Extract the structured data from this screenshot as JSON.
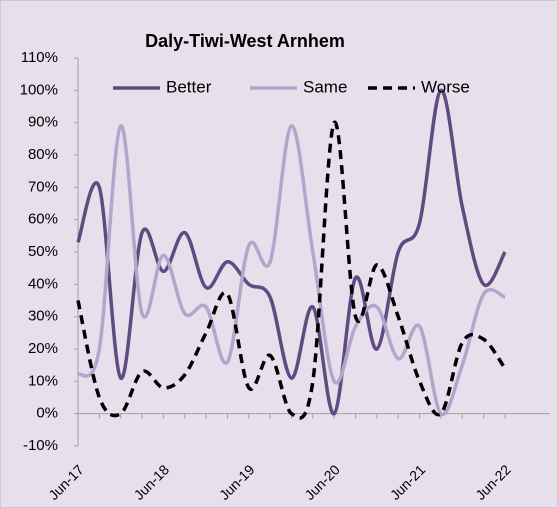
{
  "chart_data": {
    "type": "line",
    "title": "Daly-Tiwi-West Arnhem",
    "categories": [
      "Jun-17",
      null,
      null,
      null,
      "Jun-18",
      null,
      null,
      null,
      "Jun-19",
      null,
      null,
      null,
      "Jun-20",
      null,
      null,
      null,
      "Jun-21",
      null,
      null,
      null,
      "Jun-22"
    ],
    "series": [
      {
        "name": "Better",
        "color": "#5f4b80",
        "dash": false,
        "values": [
          53,
          70,
          11,
          56,
          44,
          56,
          39,
          47,
          40,
          36,
          11,
          33,
          0,
          42,
          20,
          50,
          59,
          100,
          64,
          40,
          50
        ]
      },
      {
        "name": "Same",
        "color": "#b4a5cd",
        "dash": false,
        "values": [
          12,
          20,
          89,
          31,
          49,
          31,
          33,
          16,
          52,
          47,
          89,
          50,
          10,
          27,
          33,
          17,
          27,
          0,
          15,
          37,
          36
        ]
      },
      {
        "name": "Worse",
        "color": "#000000",
        "dash": true,
        "values": [
          35,
          5,
          0,
          13,
          8,
          12,
          25,
          37,
          8,
          18,
          0,
          10,
          90,
          30,
          46,
          30,
          10,
          0,
          22,
          23,
          14
        ]
      }
    ],
    "ylim": [
      -10,
      110
    ],
    "yticks": [
      {
        "value": -10,
        "label": "-10%"
      },
      {
        "value": 0,
        "label": "0%"
      },
      {
        "value": 10,
        "label": "10%"
      },
      {
        "value": 20,
        "label": "20%"
      },
      {
        "value": 30,
        "label": "30%"
      },
      {
        "value": 40,
        "label": "40%"
      },
      {
        "value": 50,
        "label": "50%"
      },
      {
        "value": 60,
        "label": "60%"
      },
      {
        "value": 70,
        "label": "70%"
      },
      {
        "value": 80,
        "label": "80%"
      },
      {
        "value": 90,
        "label": "90%"
      },
      {
        "value": 100,
        "label": "100%"
      },
      {
        "value": 110,
        "label": "110%"
      }
    ],
    "smooth": true
  }
}
